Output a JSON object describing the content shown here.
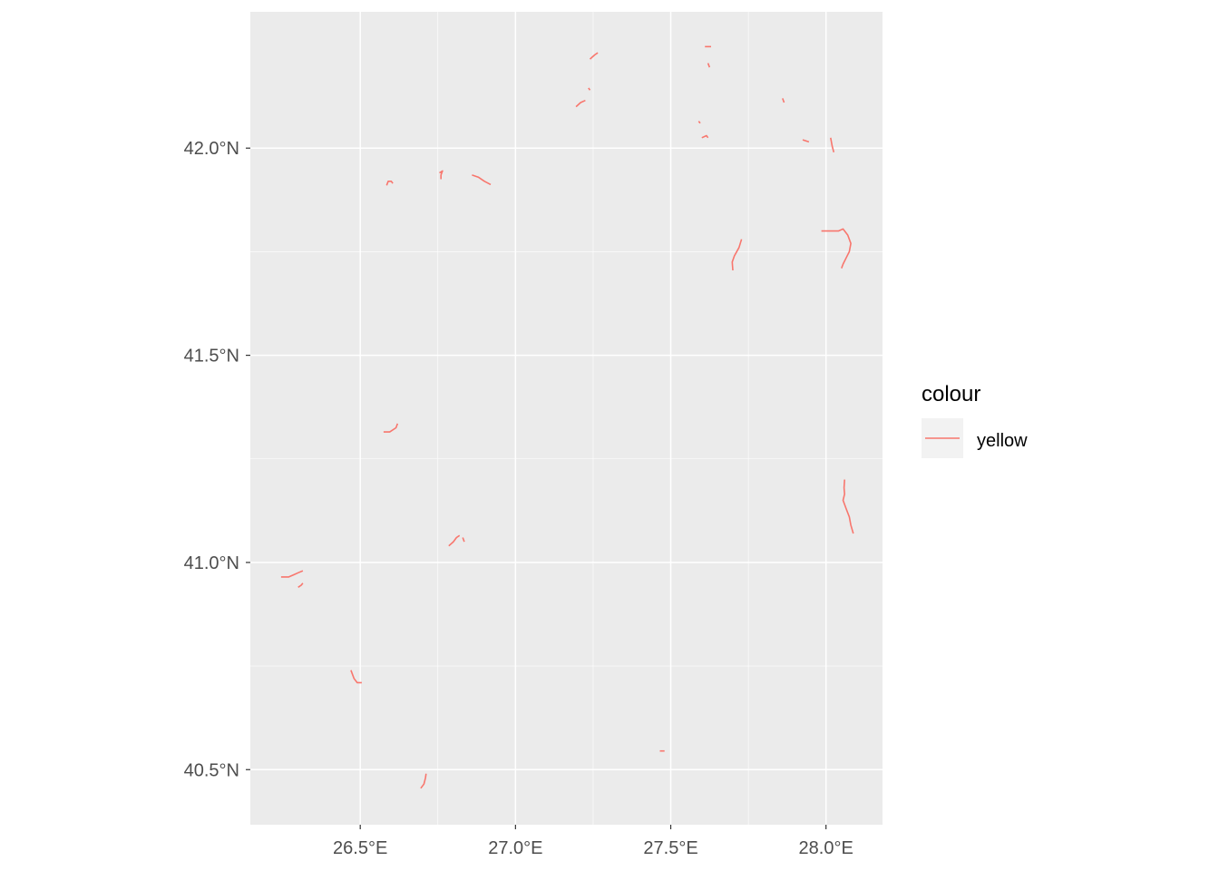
{
  "map": {
    "x_ticks": [
      {
        "value": 26.5,
        "label": "26.5°E"
      },
      {
        "value": 27.0,
        "label": "27.0°E"
      },
      {
        "value": 27.5,
        "label": "27.5°E"
      },
      {
        "value": 28.0,
        "label": "28.0°E"
      }
    ],
    "y_ticks": [
      {
        "value": 40.5,
        "label": "40.5°N"
      },
      {
        "value": 41.0,
        "label": "41.0°N"
      },
      {
        "value": 41.5,
        "label": "41.5°N"
      },
      {
        "value": 42.0,
        "label": "42.0°N"
      }
    ],
    "xlim": [
      26.146,
      28.182
    ],
    "ylim": [
      40.367,
      42.329
    ],
    "colors": {
      "panel_background": "#EBEBEB",
      "gridline": "#FFFFFF",
      "line": "#F8766D",
      "tick_label": "#4D4D4D"
    },
    "legend": {
      "title": "colour",
      "placement": "right",
      "entries": [
        {
          "label": "yellow",
          "color": "#F8766D"
        }
      ]
    },
    "segments": [
      [
        [
          27.24,
          42.215
        ],
        [
          27.255,
          42.225
        ],
        [
          27.265,
          42.23
        ]
      ],
      [
        [
          27.61,
          42.245
        ],
        [
          27.63,
          42.245
        ]
      ],
      [
        [
          27.62,
          42.205
        ],
        [
          27.625,
          42.195
        ]
      ],
      [
        [
          27.235,
          42.145
        ],
        [
          27.24,
          42.14
        ]
      ],
      [
        [
          27.195,
          42.1
        ],
        [
          27.21,
          42.11
        ],
        [
          27.225,
          42.115
        ]
      ],
      [
        [
          27.59,
          42.065
        ],
        [
          27.595,
          42.06
        ]
      ],
      [
        [
          27.6,
          42.025
        ],
        [
          27.615,
          42.03
        ],
        [
          27.62,
          42.025
        ]
      ],
      [
        [
          27.86,
          42.12
        ],
        [
          27.865,
          42.11
        ]
      ],
      [
        [
          27.925,
          42.02
        ],
        [
          27.945,
          42.015
        ]
      ],
      [
        [
          28.015,
          42.025
        ],
        [
          28.02,
          42.005
        ],
        [
          28.025,
          41.99
        ]
      ],
      [
        [
          26.585,
          41.91
        ],
        [
          26.59,
          41.92
        ],
        [
          26.6,
          41.92
        ],
        [
          26.605,
          41.915
        ]
      ],
      [
        [
          26.755,
          41.94
        ],
        [
          26.765,
          41.945
        ],
        [
          26.76,
          41.935
        ],
        [
          26.76,
          41.925
        ]
      ],
      [
        [
          26.86,
          41.935
        ],
        [
          26.88,
          41.93
        ],
        [
          26.9,
          41.92
        ],
        [
          26.92,
          41.912
        ]
      ],
      [
        [
          27.7,
          41.705
        ],
        [
          27.698,
          41.725
        ],
        [
          27.705,
          41.74
        ],
        [
          27.72,
          41.76
        ],
        [
          27.728,
          41.78
        ]
      ],
      [
        [
          27.985,
          41.8
        ],
        [
          28.015,
          41.8
        ],
        [
          28.04,
          41.8
        ],
        [
          28.055,
          41.805
        ],
        [
          28.07,
          41.79
        ],
        [
          28.08,
          41.77
        ],
        [
          28.075,
          41.75
        ],
        [
          28.065,
          41.735
        ],
        [
          28.055,
          41.72
        ],
        [
          28.05,
          41.71
        ]
      ],
      [
        [
          28.06,
          41.2
        ],
        [
          28.058,
          41.18
        ],
        [
          28.06,
          41.165
        ],
        [
          28.055,
          41.15
        ],
        [
          28.065,
          41.13
        ],
        [
          28.075,
          41.11
        ],
        [
          28.08,
          41.09
        ],
        [
          28.088,
          41.07
        ]
      ],
      [
        [
          26.575,
          41.315
        ],
        [
          26.595,
          41.315
        ],
        [
          26.615,
          41.325
        ],
        [
          26.62,
          41.335
        ]
      ],
      [
        [
          26.785,
          41.04
        ],
        [
          26.8,
          41.05
        ],
        [
          26.81,
          41.06
        ],
        [
          26.82,
          41.065
        ]
      ],
      [
        [
          26.83,
          41.06
        ],
        [
          26.835,
          41.05
        ]
      ],
      [
        [
          26.245,
          40.965
        ],
        [
          26.27,
          40.965
        ],
        [
          26.285,
          40.97
        ],
        [
          26.3,
          40.975
        ],
        [
          26.315,
          40.98
        ]
      ],
      [
        [
          26.3,
          40.94
        ],
        [
          26.31,
          40.945
        ],
        [
          26.315,
          40.95
        ]
      ],
      [
        [
          26.47,
          40.74
        ],
        [
          26.48,
          40.72
        ],
        [
          26.49,
          40.71
        ],
        [
          26.505,
          40.71
        ]
      ],
      [
        [
          27.465,
          40.545
        ],
        [
          27.48,
          40.545
        ]
      ],
      [
        [
          26.695,
          40.455
        ],
        [
          26.705,
          40.465
        ],
        [
          26.71,
          40.48
        ],
        [
          26.712,
          40.49
        ]
      ]
    ]
  }
}
